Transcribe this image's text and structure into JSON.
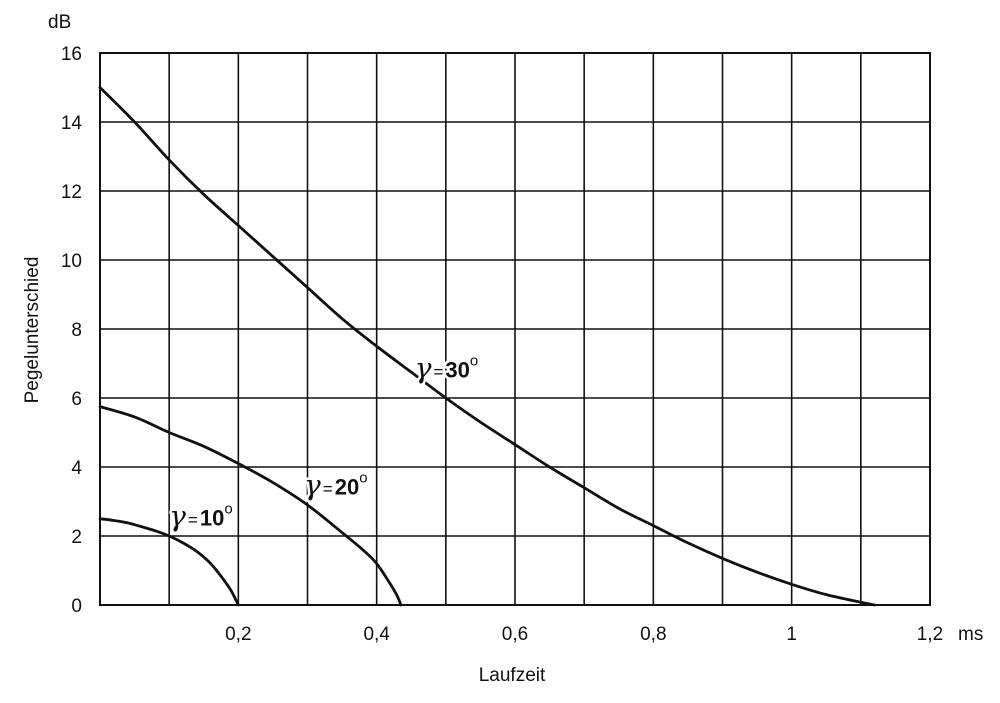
{
  "chart_data": {
    "type": "line",
    "xlabel": "Laufzeit",
    "ylabel": "Pegelunterschied",
    "x_unit": "ms",
    "y_unit": "dB",
    "xlim": [
      0,
      1.2
    ],
    "ylim": [
      0,
      16
    ],
    "x_ticks": [
      {
        "value": 0.2,
        "label": "0,2"
      },
      {
        "value": 0.4,
        "label": "0,4"
      },
      {
        "value": 0.6,
        "label": "0,6"
      },
      {
        "value": 0.8,
        "label": "0,8"
      },
      {
        "value": 1.0,
        "label": "1"
      },
      {
        "value": 1.2,
        "label": "1,2"
      }
    ],
    "y_ticks": [
      {
        "value": 0,
        "label": "0"
      },
      {
        "value": 2,
        "label": "2"
      },
      {
        "value": 4,
        "label": "4"
      },
      {
        "value": 6,
        "label": "6"
      },
      {
        "value": 8,
        "label": "8"
      },
      {
        "value": 10,
        "label": "10"
      },
      {
        "value": 12,
        "label": "12"
      },
      {
        "value": 14,
        "label": "14"
      },
      {
        "value": 16,
        "label": "16"
      }
    ],
    "grid": true,
    "grid_x_step": 0.1,
    "grid_y_step": 2,
    "series": [
      {
        "name": "γ=10°",
        "symbol": "γ",
        "eq": "=",
        "value": "10",
        "degree": "o",
        "label_at": [
          0.1,
          2.3
        ],
        "x": [
          0,
          0.02,
          0.04,
          0.06,
          0.08,
          0.1,
          0.12,
          0.14,
          0.16,
          0.18,
          0.19,
          0.2
        ],
        "y": [
          2.5,
          2.45,
          2.38,
          2.27,
          2.15,
          2.0,
          1.8,
          1.55,
          1.2,
          0.7,
          0.4,
          0
        ]
      },
      {
        "name": "γ=20°",
        "symbol": "γ",
        "eq": "=",
        "value": "20",
        "degree": "o",
        "label_at": [
          0.295,
          3.2
        ],
        "x": [
          0,
          0.05,
          0.1,
          0.15,
          0.2,
          0.25,
          0.3,
          0.35,
          0.38,
          0.4,
          0.42,
          0.43,
          0.435
        ],
        "y": [
          5.75,
          5.45,
          5.0,
          4.6,
          4.1,
          3.55,
          2.9,
          2.1,
          1.6,
          1.2,
          0.6,
          0.25,
          0
        ]
      },
      {
        "name": "γ=30°",
        "symbol": "γ",
        "eq": "=",
        "value": "30",
        "degree": "o",
        "label_at": [
          0.455,
          6.6
        ],
        "x": [
          0,
          0.05,
          0.1,
          0.15,
          0.2,
          0.25,
          0.3,
          0.35,
          0.4,
          0.45,
          0.5,
          0.55,
          0.6,
          0.65,
          0.7,
          0.75,
          0.8,
          0.85,
          0.9,
          0.95,
          1.0,
          1.05,
          1.1,
          1.12
        ],
        "y": [
          15.0,
          14.0,
          12.9,
          11.9,
          11.0,
          10.1,
          9.2,
          8.3,
          7.5,
          6.75,
          6.0,
          5.3,
          4.65,
          4.0,
          3.4,
          2.8,
          2.3,
          1.8,
          1.35,
          0.95,
          0.6,
          0.3,
          0.08,
          0
        ]
      }
    ]
  }
}
